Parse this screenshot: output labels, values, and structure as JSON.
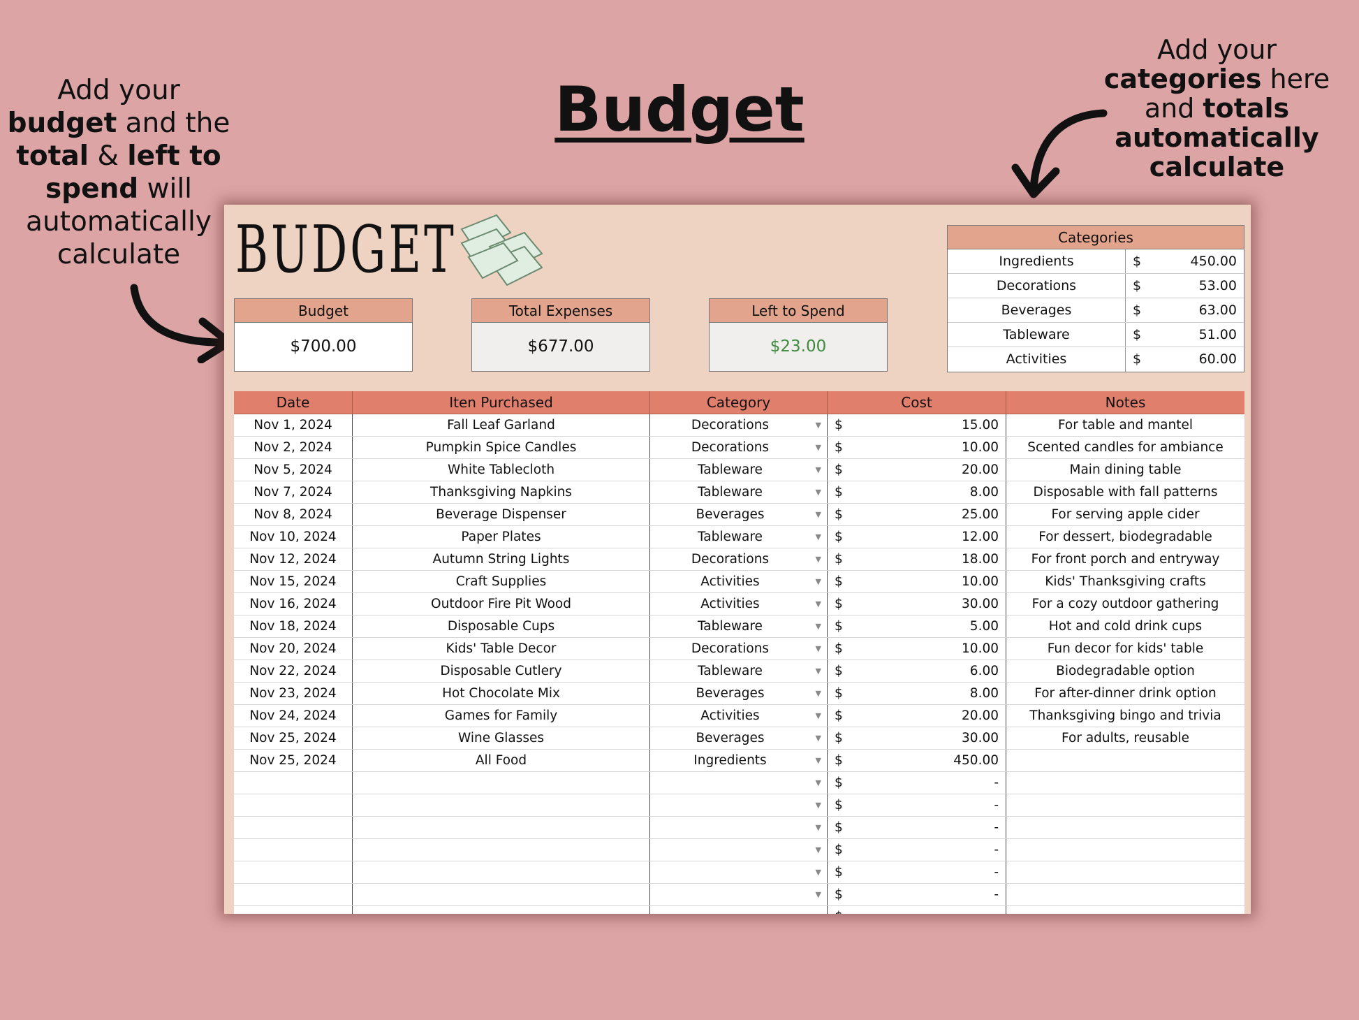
{
  "title": "Budget",
  "note_left": [
    "Add your",
    "budget",
    " and the",
    "total",
    " & ",
    "left to",
    "spend",
    " will",
    "automatically",
    "calculate"
  ],
  "note_right": [
    "Add your",
    "categories",
    " here",
    "and ",
    "totals",
    "automatically",
    "calculate"
  ],
  "sheet": {
    "logo": "BUDGET",
    "summary": [
      {
        "label": "Budget",
        "value": "$700.00"
      },
      {
        "label": "Total Expenses",
        "value": "$677.00"
      },
      {
        "label": "Left to Spend",
        "value": "$23.00",
        "color": "#3d8a3d"
      }
    ],
    "categories": {
      "header": "Categories",
      "currency": "$",
      "items": [
        {
          "name": "Ingredients",
          "total": "450.00"
        },
        {
          "name": "Decorations",
          "total": "53.00"
        },
        {
          "name": "Beverages",
          "total": "63.00"
        },
        {
          "name": "Tableware",
          "total": "51.00"
        },
        {
          "name": "Activities",
          "total": "60.00"
        }
      ]
    },
    "columns": [
      "Date",
      "Iten Purchased",
      "Category",
      "Cost",
      "Notes"
    ],
    "currency": "$",
    "rows": [
      [
        "Nov 1, 2024",
        "Fall Leaf Garland",
        "Decorations",
        "15.00",
        "For table and mantel"
      ],
      [
        "Nov 2, 2024",
        "Pumpkin Spice Candles",
        "Decorations",
        "10.00",
        "Scented candles for ambiance"
      ],
      [
        "Nov 5, 2024",
        "White Tablecloth",
        "Tableware",
        "20.00",
        "Main dining table"
      ],
      [
        "Nov 7, 2024",
        "Thanksgiving Napkins",
        "Tableware",
        "8.00",
        "Disposable with fall patterns"
      ],
      [
        "Nov 8, 2024",
        "Beverage Dispenser",
        "Beverages",
        "25.00",
        "For serving apple cider"
      ],
      [
        "Nov 10, 2024",
        "Paper Plates",
        "Tableware",
        "12.00",
        "For dessert, biodegradable"
      ],
      [
        "Nov 12, 2024",
        "Autumn String Lights",
        "Decorations",
        "18.00",
        "For front porch and entryway"
      ],
      [
        "Nov 15, 2024",
        "Craft Supplies",
        "Activities",
        "10.00",
        "Kids' Thanksgiving crafts"
      ],
      [
        "Nov 16, 2024",
        "Outdoor Fire Pit Wood",
        "Activities",
        "30.00",
        "For a cozy outdoor gathering"
      ],
      [
        "Nov 18, 2024",
        "Disposable Cups",
        "Tableware",
        "5.00",
        "Hot and cold drink cups"
      ],
      [
        "Nov 20, 2024",
        "Kids' Table Decor",
        "Decorations",
        "10.00",
        "Fun decor for kids' table"
      ],
      [
        "Nov 22, 2024",
        "Disposable Cutlery",
        "Tableware",
        "6.00",
        "Biodegradable option"
      ],
      [
        "Nov 23, 2024",
        "Hot Chocolate Mix",
        "Beverages",
        "8.00",
        "For after-dinner drink option"
      ],
      [
        "Nov 24, 2024",
        "Games for Family",
        "Activities",
        "20.00",
        "Thanksgiving bingo and trivia"
      ],
      [
        "Nov 25, 2024",
        "Wine Glasses",
        "Beverages",
        "30.00",
        "For adults, reusable"
      ],
      [
        "Nov 25, 2024",
        "All Food",
        "Ingredients",
        "450.00",
        ""
      ],
      [
        "",
        "",
        "",
        "-",
        ""
      ],
      [
        "",
        "",
        "",
        "-",
        ""
      ],
      [
        "",
        "",
        "",
        "-",
        ""
      ],
      [
        "",
        "",
        "",
        "-",
        ""
      ],
      [
        "",
        "",
        "",
        "-",
        ""
      ],
      [
        "",
        "",
        "",
        "-",
        ""
      ],
      [
        "",
        "",
        "",
        "",
        ""
      ]
    ]
  }
}
